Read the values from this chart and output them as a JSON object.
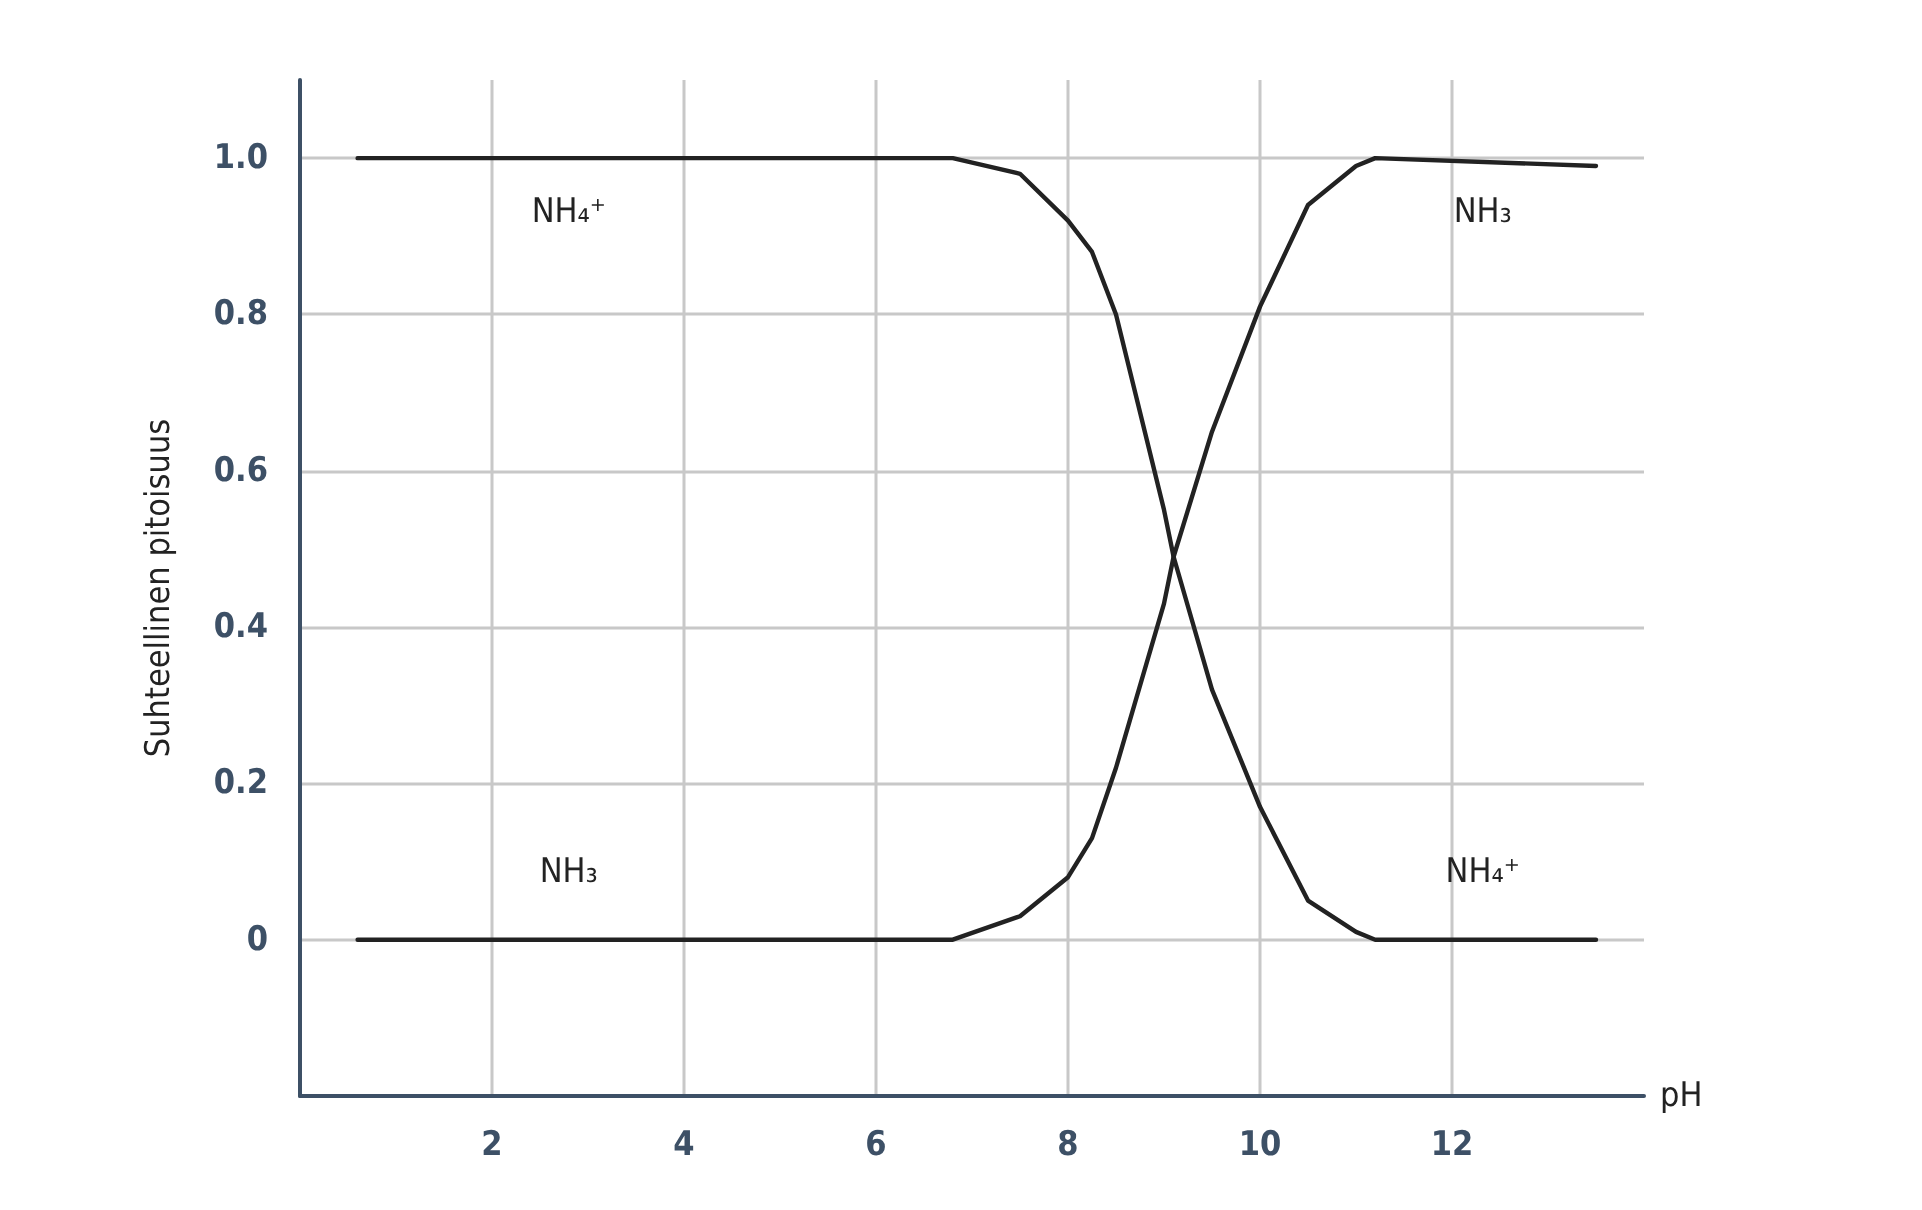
{
  "chart_data": {
    "type": "line",
    "xlabel": "pH",
    "ylabel": "Suhteellinen pitoisuus",
    "xlim": [
      0,
      14
    ],
    "xticks": [
      2,
      4,
      6,
      8,
      10,
      12
    ],
    "ylim": [
      -0.2,
      1.1
    ],
    "yticks": [
      0,
      0.2,
      0.4,
      0.6,
      0.8,
      {
        "value": 1,
        "label": "1.0"
      }
    ],
    "grid": true,
    "marker": "none",
    "line_style": "solid",
    "series": [
      {
        "color": "#222222",
        "x": [
          0.6,
          3,
          6.8,
          7.5,
          8,
          8.25,
          8.5,
          9,
          9.1,
          9.5,
          10,
          10.5,
          11,
          11.2,
          13.5
        ],
        "values": [
          1,
          1,
          1,
          0.98,
          0.92,
          0.88,
          0.8,
          0.55,
          0.49,
          0.32,
          0.17,
          0.05,
          0.01,
          0,
          0
        ]
      },
      {
        "color": "#222222",
        "x": [
          0.6,
          3,
          6.8,
          7.5,
          8,
          8.25,
          8.5,
          9,
          9.1,
          9.5,
          10,
          10.5,
          11,
          11.2,
          13.5
        ],
        "values": [
          0,
          0,
          0,
          0.03,
          0.08,
          0.13,
          0.22,
          0.43,
          0.49,
          0.65,
          0.81,
          0.94,
          0.99,
          1,
          0.99
        ]
      }
    ],
    "annotations": [
      "NH₄⁺",
      "NH₃",
      "NH₃",
      "NH₄⁺"
    ]
  }
}
